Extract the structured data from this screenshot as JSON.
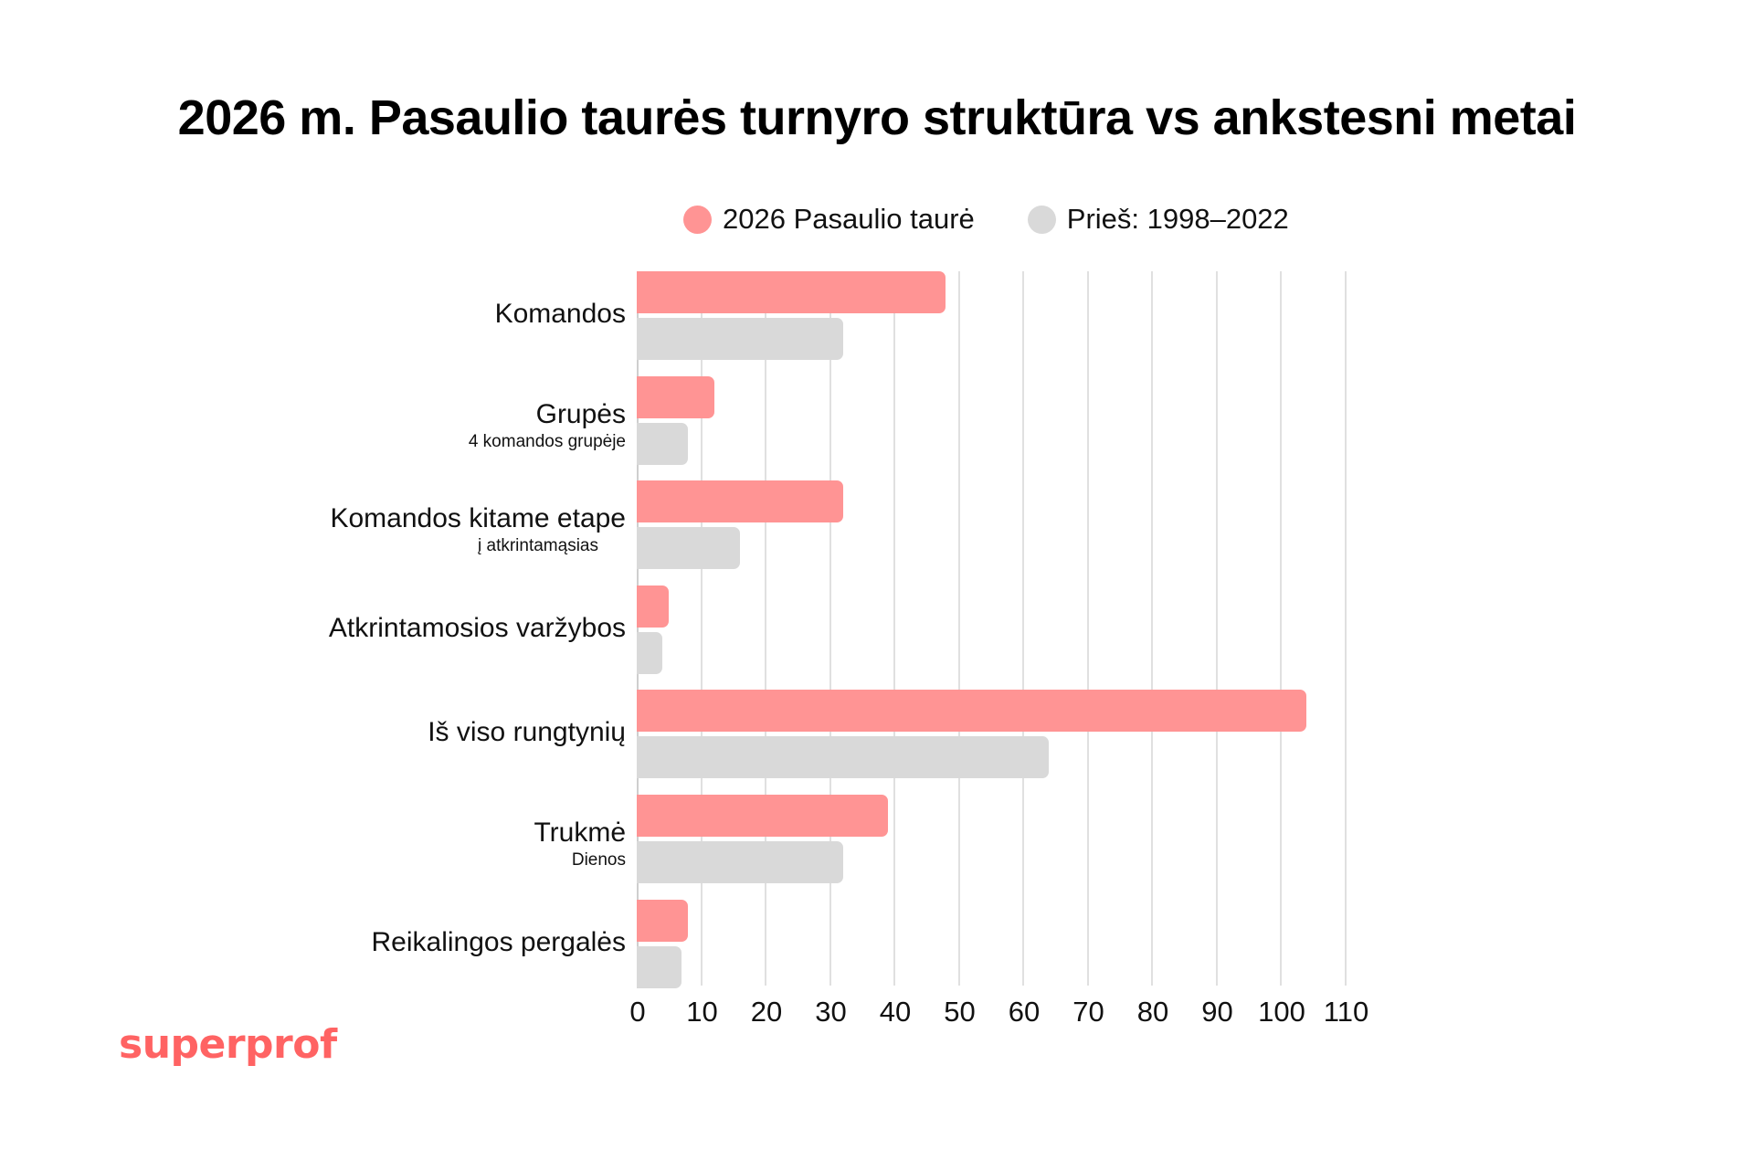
{
  "title": "2026 m. Pasaulio taurės turnyro struktūra vs ankstesni metai",
  "legend": [
    {
      "label": "2026 Pasaulio taurė",
      "color": "#ff9494"
    },
    {
      "label": "Prieš: 1998–2022",
      "color": "#d9d9d9"
    }
  ],
  "brand": {
    "logo_text": "superprof",
    "color": "#ff6363"
  },
  "chart_data": {
    "type": "bar",
    "orientation": "horizontal",
    "title": "2026 m. Pasaulio taurės turnyro struktūra vs ankstesni metai",
    "categories": [
      "Komandos",
      "Grupės",
      "Komandos kitame etape",
      "Atkrintamosios varžybos",
      "Iš viso rungtynių",
      "Trukmė",
      "Reikalingos pergalės"
    ],
    "category_sublabels": [
      "",
      "4 komandos grupėje",
      "į atkrintamąsias",
      "",
      "",
      "Dienos",
      ""
    ],
    "series": [
      {
        "name": "2026 Pasaulio taurė",
        "color": "#ff9494",
        "values": [
          48,
          12,
          32,
          5,
          104,
          39,
          8
        ]
      },
      {
        "name": "Prieš: 1998–2022",
        "color": "#d9d9d9",
        "values": [
          32,
          8,
          16,
          4,
          64,
          32,
          7
        ]
      }
    ],
    "xlabel": "",
    "ylabel": "",
    "xlim": [
      0,
      110
    ],
    "xticks": [
      "0",
      "10",
      "20",
      "30",
      "40",
      "50",
      "60",
      "70",
      "80",
      "90",
      "100",
      "110"
    ],
    "grid": "vertical",
    "legend_position": "top"
  }
}
